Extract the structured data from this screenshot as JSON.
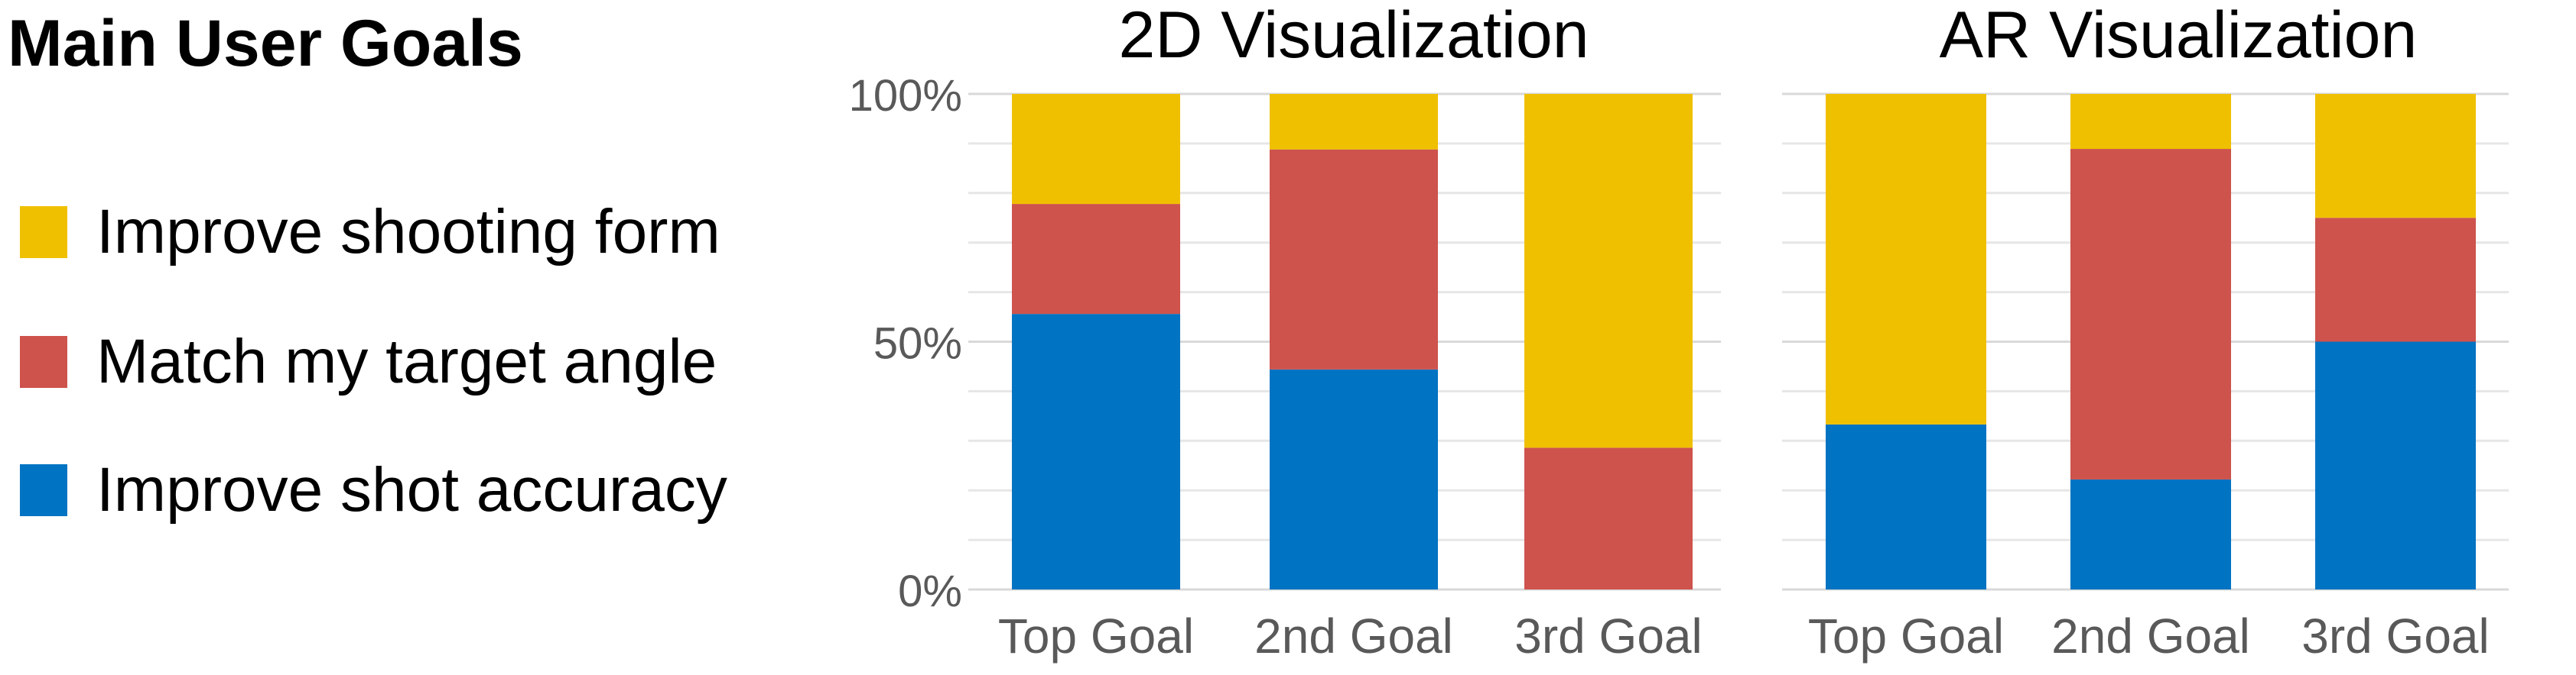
{
  "legend": {
    "title": "Main User Goals",
    "items": [
      {
        "label": "Improve shooting form",
        "color": "#efc000"
      },
      {
        "label": "Match my target angle",
        "color": "#cd534c"
      },
      {
        "label": "Improve shot accuracy",
        "color": "#0073c2"
      }
    ]
  },
  "chart_data": [
    {
      "type": "bar",
      "stacked": true,
      "title": "2D Visualization",
      "categories": [
        "Top Goal",
        "2nd Goal",
        "3rd Goal"
      ],
      "ylim": [
        0,
        1
      ],
      "yticks": [
        {
          "value": 0,
          "label": "0%"
        },
        {
          "value": 0.5,
          "label": "50%"
        },
        {
          "value": 1,
          "label": "100%"
        }
      ],
      "grid": true,
      "series": [
        {
          "name": "Improve shot accuracy",
          "color": "#0073c2",
          "values": [
            0.556,
            0.444,
            0.0
          ]
        },
        {
          "name": "Match my target angle",
          "color": "#cd534c",
          "values": [
            0.222,
            0.444,
            0.286
          ]
        },
        {
          "name": "Improve shooting form",
          "color": "#efc000",
          "values": [
            0.222,
            0.112,
            0.714
          ]
        }
      ]
    },
    {
      "type": "bar",
      "stacked": true,
      "title": "AR Visualization",
      "categories": [
        "Top Goal",
        "2nd Goal",
        "3rd Goal"
      ],
      "ylim": [
        0,
        1
      ],
      "yticks": [],
      "grid": true,
      "series": [
        {
          "name": "Improve shot accuracy",
          "color": "#0073c2",
          "values": [
            0.333,
            0.222,
            0.5
          ]
        },
        {
          "name": "Match my target angle",
          "color": "#cd534c",
          "values": [
            0.0,
            0.667,
            0.25
          ]
        },
        {
          "name": "Improve shooting form",
          "color": "#efc000",
          "values": [
            0.667,
            0.111,
            0.25
          ]
        }
      ]
    }
  ]
}
